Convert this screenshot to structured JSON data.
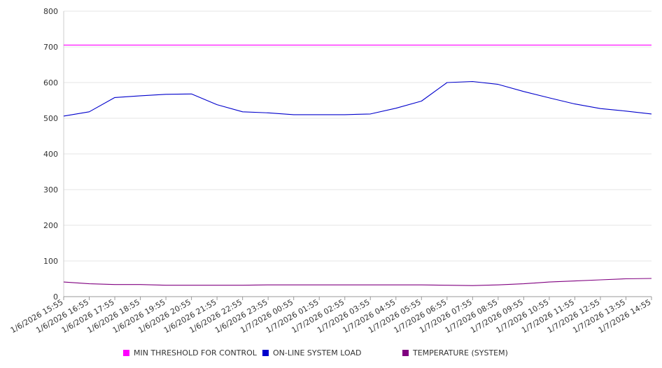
{
  "chart_data": {
    "type": "line",
    "title": "",
    "xlabel": "",
    "ylabel": "",
    "ylim": [
      0,
      800
    ],
    "y_ticks": [
      "0",
      "100",
      "200",
      "300",
      "400",
      "500",
      "600",
      "700",
      "800"
    ],
    "grid": true,
    "legend_placement": "bottom",
    "x": [
      "1/6/2026 15:55",
      "1/6/2026 16:55",
      "1/6/2026 17:55",
      "1/6/2026 18:55",
      "1/6/2026 19:55",
      "1/6/2026 20:55",
      "1/6/2026 21:55",
      "1/6/2026 22:55",
      "1/6/2026 23:55",
      "1/7/2026 00:55",
      "1/7/2026 01:55",
      "1/7/2026 02:55",
      "1/7/2026 03:55",
      "1/7/2026 04:55",
      "1/7/2026 05:55",
      "1/7/2026 06:55",
      "1/7/2026 07:55",
      "1/7/2026 08:55",
      "1/7/2026 09:55",
      "1/7/2026 10:55",
      "1/7/2026 11:55",
      "1/7/2026 12:55",
      "1/7/2026 13:55",
      "1/7/2026 14:55"
    ],
    "series": [
      {
        "name": "MIN THRESHOLD FOR CONTROL",
        "color": "#ff00ff",
        "values": [
          705,
          705,
          705,
          705,
          705,
          705,
          705,
          705,
          705,
          705,
          705,
          705,
          705,
          705,
          705,
          705,
          705,
          705,
          705,
          705,
          705,
          705,
          705,
          705
        ]
      },
      {
        "name": "ON-LINE SYSTEM LOAD",
        "color": "#0000cc",
        "values": [
          506,
          518,
          558,
          563,
          567,
          568,
          538,
          518,
          515,
          510,
          510,
          510,
          512,
          528,
          548,
          600,
          603,
          595,
          575,
          557,
          540,
          527,
          520,
          512
        ]
      },
      {
        "name": "TEMPERATURE (SYSTEM)",
        "color": "#800080",
        "values": [
          41,
          36,
          34,
          34,
          32,
          32,
          32,
          32,
          33,
          33,
          33,
          33,
          33,
          33,
          33,
          32,
          31,
          33,
          36,
          41,
          44,
          47,
          50,
          51
        ]
      }
    ]
  }
}
